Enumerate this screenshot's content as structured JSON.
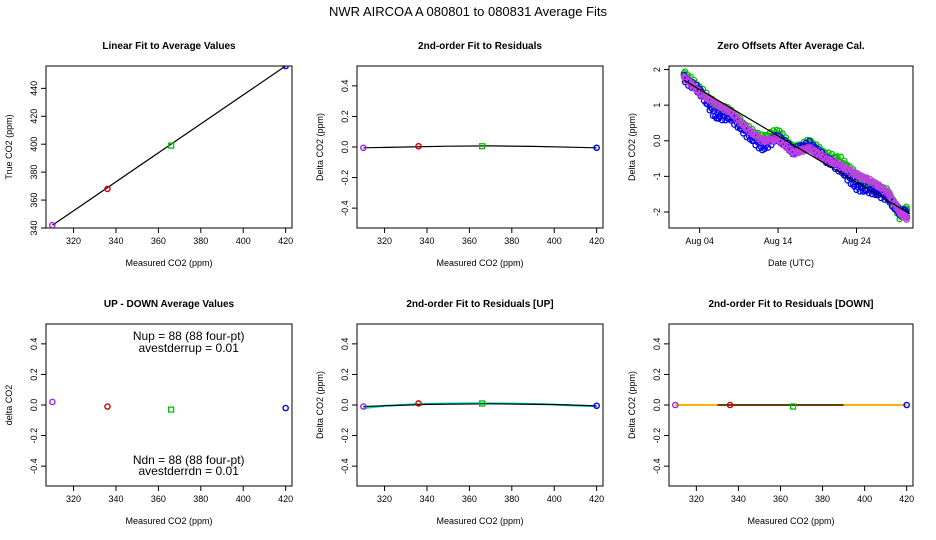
{
  "figure": {
    "title": "NWR   AIRCOA A    080801 to 080831    Average Fits",
    "colors": {
      "purple": "#a020f0",
      "red": "#d00000",
      "green": "#00c000",
      "blue": "#0000ee",
      "black": "#000000",
      "cyan": "#00d8d8",
      "orange": "#ffb000",
      "magenta": "#c040e0"
    }
  },
  "chart_data": [
    {
      "type": "scatter",
      "title": "Linear Fit to Average Values",
      "xlabel": "Measured CO2 (ppm)",
      "ylabel": "True CO2 (ppm)",
      "xlim": [
        307,
        423
      ],
      "ylim": [
        340,
        456
      ],
      "xticks": [
        320,
        340,
        360,
        380,
        400,
        420
      ],
      "yticks": [
        340,
        360,
        380,
        400,
        420,
        440
      ],
      "points": [
        {
          "x": 310,
          "y": 342,
          "color": "purple"
        },
        {
          "x": 336,
          "y": 368,
          "color": "red"
        },
        {
          "x": 366,
          "y": 399,
          "color": "green"
        },
        {
          "x": 420,
          "y": 456,
          "color": "blue"
        }
      ],
      "lines": [
        {
          "color": "black",
          "x": [
            310,
            420
          ],
          "y": [
            342,
            456
          ]
        }
      ]
    },
    {
      "type": "scatter",
      "title": "2nd-order Fit to Residuals",
      "xlabel": "Measured CO2 (ppm)",
      "ylabel": "Delta CO2 (ppm)",
      "xlim": [
        307,
        423
      ],
      "ylim": [
        -0.53,
        0.53
      ],
      "xticks": [
        320,
        340,
        360,
        380,
        400,
        420
      ],
      "yticks": [
        -0.4,
        -0.2,
        0.0,
        0.2,
        0.4
      ],
      "points": [
        {
          "x": 310,
          "y": -0.005,
          "color": "purple"
        },
        {
          "x": 336,
          "y": 0.005,
          "color": "red"
        },
        {
          "x": 366,
          "y": 0.005,
          "color": "green"
        },
        {
          "x": 420,
          "y": -0.005,
          "color": "blue"
        }
      ],
      "lines": [
        {
          "color": "black",
          "x": [
            310,
            330,
            350,
            370,
            390,
            410,
            420
          ],
          "y": [
            -0.005,
            0.0,
            0.005,
            0.007,
            0.004,
            -0.002,
            -0.005
          ]
        }
      ]
    },
    {
      "type": "scatter",
      "title": "Zero Offsets After Average Cal.",
      "xlabel": "Date (UTC)",
      "ylabel": "Delta CO2 (ppm)",
      "xlim": [
        -0.9,
        30.2
      ],
      "ylim": [
        -2.45,
        2.1
      ],
      "xticks": [
        3,
        13,
        23
      ],
      "xticklabels": [
        "Aug 04",
        "Aug 14",
        "Aug 24"
      ],
      "yticks": [
        -2,
        -1,
        0,
        1,
        2
      ],
      "series": [
        {
          "color": "green",
          "jitter": 0.1,
          "offset": 0.07,
          "x": [
            1,
            3,
            5,
            7,
            9,
            11,
            13,
            15,
            17,
            19,
            21,
            23,
            25,
            27,
            28.5,
            29.5
          ],
          "y": [
            1.9,
            1.45,
            1.0,
            0.8,
            0.35,
            0.05,
            0.25,
            -0.25,
            -0.05,
            -0.4,
            -0.55,
            -1.0,
            -1.25,
            -1.45,
            -2.1,
            -1.9
          ]
        },
        {
          "color": "blue",
          "jitter": 0.1,
          "offset": -0.05,
          "x": [
            1,
            3,
            5,
            7,
            9,
            11,
            13,
            15,
            17,
            19,
            21,
            23,
            25,
            27,
            28.5,
            29.5
          ],
          "y": [
            1.75,
            1.4,
            0.7,
            0.65,
            0.2,
            -0.2,
            0.1,
            -0.3,
            -0.1,
            -0.5,
            -0.8,
            -1.3,
            -1.4,
            -1.6,
            -2.0,
            -2.05
          ]
        },
        {
          "color": "magenta",
          "jitter": 0.05,
          "offset": 0.0,
          "x": [
            1,
            3,
            5,
            7,
            9,
            11,
            13,
            15,
            17,
            19,
            21,
            23,
            25,
            27,
            28.5,
            29.5
          ],
          "y": [
            1.8,
            1.35,
            1.05,
            0.8,
            0.35,
            0.0,
            0.05,
            -0.35,
            -0.2,
            -0.5,
            -0.7,
            -0.95,
            -1.15,
            -1.45,
            -2.0,
            -2.2
          ]
        }
      ],
      "lines": [
        {
          "color": "black",
          "x": [
            1,
            29.8
          ],
          "y": [
            1.7,
            -2.05
          ]
        }
      ]
    },
    {
      "type": "scatter",
      "title": "UP - DOWN Average Values",
      "xlabel": "Measured CO2 (ppm)",
      "ylabel": "delta CO2",
      "xlim": [
        307,
        423
      ],
      "ylim": [
        -0.53,
        0.53
      ],
      "xticks": [
        320,
        340,
        360,
        380,
        400,
        420
      ],
      "yticks": [
        -0.4,
        -0.2,
        0.0,
        0.2,
        0.4
      ],
      "points": [
        {
          "x": 310,
          "y": 0.02,
          "color": "purple"
        },
        {
          "x": 336,
          "y": -0.01,
          "color": "red"
        },
        {
          "x": 366,
          "y": -0.03,
          "color": "green"
        },
        {
          "x": 420,
          "y": -0.02,
          "color": "blue"
        }
      ],
      "annotations": {
        "upper_line1": "Nup = 88 (88 four-pt)",
        "upper_line2": "avestderrup =  0.01",
        "lower_line1": "Ndn = 88 (88 four-pt)",
        "lower_line2": "avestderrdn =  0.01"
      }
    },
    {
      "type": "scatter",
      "title": "2nd-order Fit to Residuals [UP]",
      "xlabel": "Measured CO2 (ppm)",
      "ylabel": "Delta CO2 (ppm)",
      "xlim": [
        307,
        423
      ],
      "ylim": [
        -0.53,
        0.53
      ],
      "xticks": [
        320,
        340,
        360,
        380,
        400,
        420
      ],
      "yticks": [
        -0.4,
        -0.2,
        0.0,
        0.2,
        0.4
      ],
      "points": [
        {
          "x": 310,
          "y": -0.01,
          "color": "purple"
        },
        {
          "x": 336,
          "y": 0.01,
          "color": "red"
        },
        {
          "x": 366,
          "y": 0.01,
          "color": "green"
        },
        {
          "x": 420,
          "y": -0.005,
          "color": "blue"
        }
      ],
      "lines": [
        {
          "color": "cyan",
          "x": [
            310,
            320,
            335,
            350,
            365,
            380,
            395,
            410,
            420
          ],
          "y": [
            -0.02,
            -0.005,
            0.005,
            0.01,
            0.012,
            0.01,
            0.005,
            -0.003,
            -0.008
          ]
        },
        {
          "color": "black",
          "x": [
            310,
            340,
            370,
            400,
            420
          ],
          "y": [
            -0.01,
            0.004,
            0.008,
            0.003,
            -0.006
          ]
        }
      ]
    },
    {
      "type": "scatter",
      "title": "2nd-order Fit to Residuals [DOWN]",
      "xlabel": "Measured CO2 (ppm)",
      "ylabel": "Delta CO2 (ppm)",
      "xlim": [
        307,
        423
      ],
      "ylim": [
        -0.53,
        0.53
      ],
      "xticks": [
        320,
        340,
        360,
        380,
        400,
        420
      ],
      "yticks": [
        -0.4,
        -0.2,
        0.0,
        0.2,
        0.4
      ],
      "points": [
        {
          "x": 310,
          "y": 0.0,
          "color": "purple"
        },
        {
          "x": 336,
          "y": 0.0,
          "color": "red"
        },
        {
          "x": 366,
          "y": -0.01,
          "color": "green"
        },
        {
          "x": 420,
          "y": 0.0,
          "color": "blue"
        }
      ],
      "lines": [
        {
          "color": "orange",
          "x": [
            310,
            340,
            370,
            400,
            420
          ],
          "y": [
            0.0,
            0.0,
            0.0,
            0.0,
            0.0
          ]
        },
        {
          "color": "black",
          "x": [
            330,
            390
          ],
          "y": [
            0.0,
            0.0
          ]
        }
      ]
    }
  ]
}
